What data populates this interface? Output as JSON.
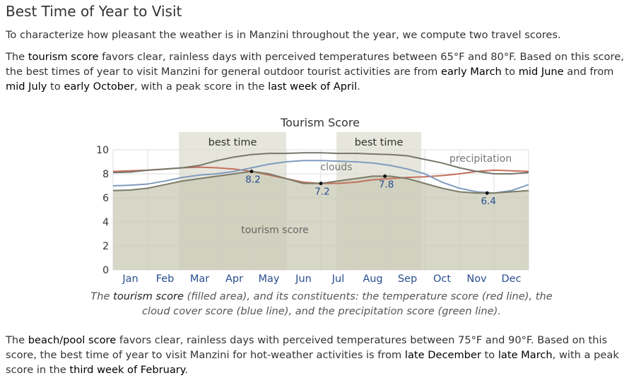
{
  "heading": "Best Time of Year to Visit",
  "intro": "To characterize how pleasant the weather is in Manzini throughout the year, we compute two travel scores.",
  "tourism_paragraph": {
    "t1": "The ",
    "k1": "tourism score",
    "t2": " favors clear, rainless days with perceived temperatures between 65°F and 80°F. Based on this score, the best times of year to visit Manzini for general outdoor tourist activities are from ",
    "k2": "early March",
    "t3": " to ",
    "k3": "mid June",
    "t4": " and from ",
    "k4": "mid July",
    "t5": " to ",
    "k5": "early October",
    "t6": ", with a peak score in the ",
    "k6": "last week of April",
    "t7": "."
  },
  "caption": {
    "t1": "The ",
    "k1": "tourism score",
    "t2": " (filled area), and its constituents: the temperature score (red line), the cloud cover score (blue line), and the precipitation score (green line)."
  },
  "beach_paragraph": {
    "t1": "The ",
    "k1": "beach/pool score",
    "t2": " favors clear, rainless days with perceived temperatures between 75°F and 90°F. Based on this score, the best time of year to visit Manzini for hot-weather activities is from ",
    "k2": "late December",
    "t3": " to ",
    "k3": "late March",
    "t4": ", with a peak score in the ",
    "k4": "third week of February",
    "t5": "."
  },
  "chart_data": {
    "type": "area",
    "title": "Tourism Score",
    "months": [
      "Jan",
      "Feb",
      "Mar",
      "Apr",
      "May",
      "Jun",
      "Jul",
      "Aug",
      "Sep",
      "Oct",
      "Nov",
      "Dec"
    ],
    "x_range": [
      0,
      12
    ],
    "ylim": [
      0,
      10
    ],
    "y_ticks": [
      0,
      2,
      4,
      6,
      8,
      10
    ],
    "grid": true,
    "best_time_bands": [
      {
        "label": "best time",
        "start": 1.9,
        "end": 5.0
      },
      {
        "label": "best time",
        "start": 6.45,
        "end": 8.9
      }
    ],
    "series": [
      {
        "name": "tourism score",
        "color": "#7b7b68",
        "fill": "#c9c9b6",
        "x": [
          0,
          0.5,
          1,
          1.5,
          2,
          2.5,
          3,
          3.5,
          4,
          4.5,
          5,
          5.5,
          6,
          6.5,
          7,
          7.5,
          8,
          8.5,
          9,
          9.5,
          10,
          10.5,
          11,
          11.5,
          12
        ],
        "y": [
          6.6,
          6.65,
          6.8,
          7.1,
          7.4,
          7.6,
          7.8,
          8.0,
          8.2,
          8.0,
          7.6,
          7.2,
          7.2,
          7.4,
          7.6,
          7.8,
          7.8,
          7.6,
          7.2,
          6.8,
          6.5,
          6.4,
          6.4,
          6.5,
          6.6
        ]
      },
      {
        "name": "temperature",
        "color": "#c5705e",
        "x": [
          0,
          0.5,
          1,
          1.5,
          2,
          2.5,
          3,
          3.5,
          4,
          4.5,
          5,
          5.5,
          6,
          6.5,
          7,
          7.5,
          8,
          8.5,
          9,
          9.5,
          10,
          10.5,
          11,
          11.5,
          12
        ],
        "y": [
          8.2,
          8.25,
          8.3,
          8.4,
          8.5,
          8.55,
          8.5,
          8.4,
          8.2,
          7.9,
          7.6,
          7.3,
          7.2,
          7.2,
          7.3,
          7.5,
          7.6,
          7.7,
          7.75,
          7.85,
          8.0,
          8.2,
          8.3,
          8.25,
          8.2
        ]
      },
      {
        "name": "clouds",
        "color": "#7f9cbd",
        "x": [
          0,
          0.5,
          1,
          1.5,
          2,
          2.5,
          3,
          3.5,
          4,
          4.5,
          5,
          5.5,
          6,
          6.5,
          7,
          7.5,
          8,
          8.5,
          9,
          9.5,
          10,
          10.5,
          11,
          11.5,
          12
        ],
        "y": [
          7.0,
          7.05,
          7.15,
          7.4,
          7.7,
          7.9,
          8.0,
          8.2,
          8.5,
          8.8,
          9.0,
          9.1,
          9.1,
          9.05,
          9.0,
          8.9,
          8.7,
          8.4,
          8.0,
          7.3,
          6.8,
          6.5,
          6.4,
          6.6,
          7.1
        ]
      },
      {
        "name": "precipitation",
        "color": "#77776a",
        "x": [
          0,
          0.5,
          1,
          1.5,
          2,
          2.5,
          3,
          3.5,
          4,
          4.5,
          5,
          5.5,
          6,
          6.5,
          7,
          7.5,
          8,
          8.5,
          9,
          9.5,
          10,
          10.5,
          11,
          11.5,
          12
        ],
        "y": [
          8.1,
          8.15,
          8.3,
          8.4,
          8.5,
          8.7,
          9.1,
          9.4,
          9.6,
          9.7,
          9.7,
          9.75,
          9.75,
          9.7,
          9.7,
          9.65,
          9.6,
          9.5,
          9.2,
          8.9,
          8.5,
          8.2,
          8.0,
          8.0,
          8.1
        ]
      }
    ],
    "series_labels": [
      "clouds",
      "precipitation",
      "tourism score"
    ],
    "data_labels": [
      {
        "text": "8.2",
        "x": 4.0,
        "y": 8.2
      },
      {
        "text": "7.2",
        "x": 6.0,
        "y": 7.2
      },
      {
        "text": "7.8",
        "x": 7.85,
        "y": 7.8
      },
      {
        "text": "6.4",
        "x": 10.8,
        "y": 6.4
      }
    ]
  }
}
